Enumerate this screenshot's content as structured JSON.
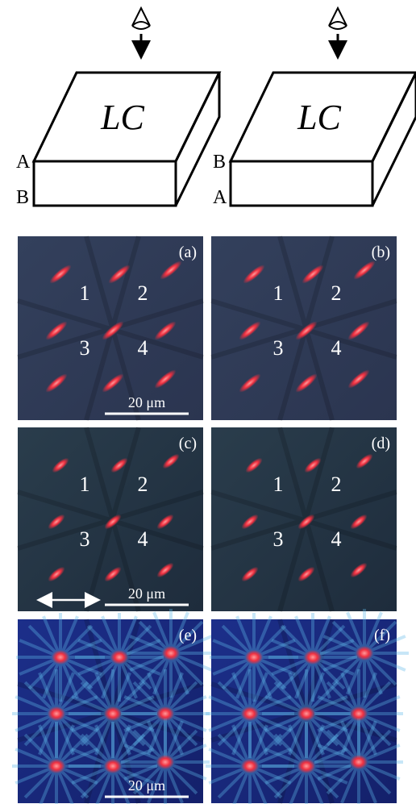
{
  "diagrams": [
    {
      "label": "LC",
      "top_edge": "A",
      "bottom_edge": "B"
    },
    {
      "label": "LC",
      "top_edge": "B",
      "bottom_edge": "A"
    }
  ],
  "panels": [
    {
      "label": "(a)",
      "numbers": [
        "1",
        "2",
        "3",
        "4"
      ],
      "scale_bar": "20 μm"
    },
    {
      "label": "(b)",
      "numbers": [
        "1",
        "2",
        "3",
        "4"
      ]
    },
    {
      "label": "(c)",
      "numbers": [
        "1",
        "2",
        "3",
        "4"
      ],
      "scale_bar": "20 μm"
    },
    {
      "label": "(d)",
      "numbers": [
        "1",
        "2",
        "3",
        "4"
      ]
    },
    {
      "label": "(e)",
      "scale_bar": "20 μm"
    },
    {
      "label": "(f)"
    }
  ]
}
